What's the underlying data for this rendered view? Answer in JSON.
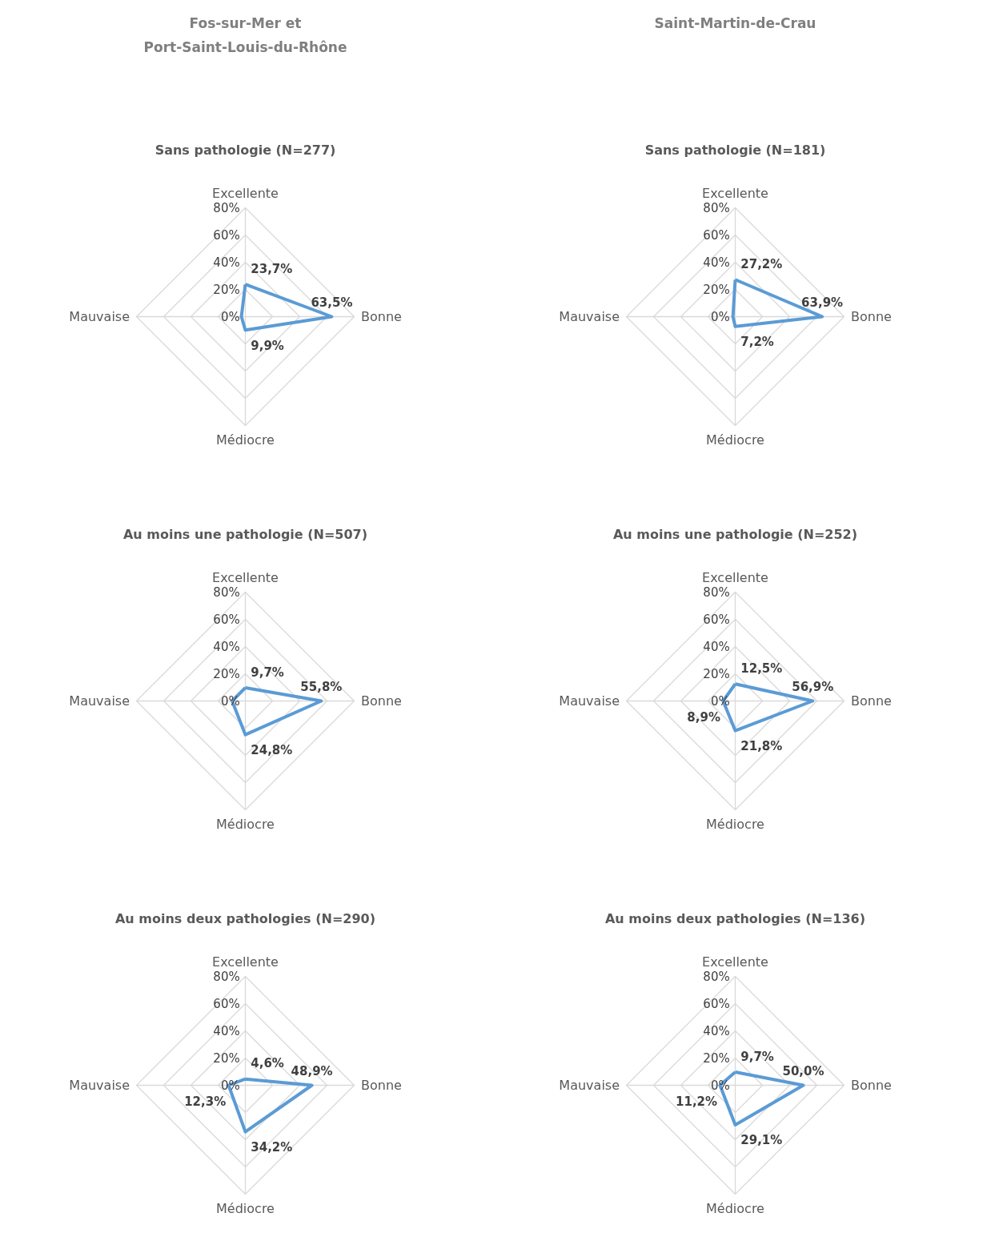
{
  "chart_data": [
    {
      "type": "radar",
      "title": "Sans pathologie (N=277)",
      "annotations": [
        "Fos-sur-Mer et\nPort-Saint-Louis-du-Rhône"
      ],
      "categories": [
        "Excellente",
        "Bonne",
        "Médiocre",
        "Mauvaise"
      ],
      "ylim": [
        0,
        80
      ],
      "yticks": [
        {
          "value": 0,
          "label": "0%"
        },
        {
          "value": 20,
          "label": "20%"
        },
        {
          "value": 40,
          "label": "40%"
        },
        {
          "value": 60,
          "label": "60%"
        },
        {
          "value": 80,
          "label": "80%"
        }
      ],
      "series": [
        {
          "color": "#5b9bd5",
          "values": [
            23.7,
            63.5,
            9.9,
            2.9
          ],
          "value_labels": [
            "23,7%",
            "63,5%",
            "9,9%",
            null
          ]
        }
      ]
    },
    {
      "type": "radar",
      "title": "Sans pathologie (N=181)",
      "annotations": [
        "Saint-Martin-de-Crau"
      ],
      "categories": [
        "Excellente",
        "Bonne",
        "Médiocre",
        "Mauvaise"
      ],
      "ylim": [
        0,
        80
      ],
      "yticks": [
        {
          "value": 0,
          "label": "0%"
        },
        {
          "value": 20,
          "label": "20%"
        },
        {
          "value": 40,
          "label": "40%"
        },
        {
          "value": 60,
          "label": "60%"
        },
        {
          "value": 80,
          "label": "80%"
        }
      ],
      "series": [
        {
          "color": "#5b9bd5",
          "values": [
            27.2,
            63.9,
            7.2,
            1.7
          ],
          "value_labels": [
            "27,2%",
            "63,9%",
            "7,2%",
            null
          ]
        }
      ]
    },
    {
      "type": "radar",
      "title": "Au moins une pathologie (N=507)",
      "categories": [
        "Excellente",
        "Bonne",
        "Médiocre",
        "Mauvaise"
      ],
      "ylim": [
        0,
        80
      ],
      "yticks": [
        {
          "value": 0,
          "label": "0%"
        },
        {
          "value": 20,
          "label": "20%"
        },
        {
          "value": 40,
          "label": "40%"
        },
        {
          "value": 60,
          "label": "60%"
        },
        {
          "value": 80,
          "label": "80%"
        }
      ],
      "series": [
        {
          "color": "#5b9bd5",
          "values": [
            9.7,
            55.8,
            24.8,
            9.7
          ],
          "value_labels": [
            "9,7%",
            "55,8%",
            "24,8%",
            null
          ]
        }
      ]
    },
    {
      "type": "radar",
      "title": "Au moins une pathologie (N=252)",
      "categories": [
        "Excellente",
        "Bonne",
        "Médiocre",
        "Mauvaise"
      ],
      "ylim": [
        0,
        80
      ],
      "yticks": [
        {
          "value": 0,
          "label": "0%"
        },
        {
          "value": 20,
          "label": "20%"
        },
        {
          "value": 40,
          "label": "40%"
        },
        {
          "value": 60,
          "label": "60%"
        },
        {
          "value": 80,
          "label": "80%"
        }
      ],
      "series": [
        {
          "color": "#5b9bd5",
          "values": [
            12.5,
            56.9,
            21.8,
            8.9
          ],
          "value_labels": [
            "12,5%",
            "56,9%",
            "21,8%",
            "8,9%"
          ]
        }
      ]
    },
    {
      "type": "radar",
      "title": "Au moins deux pathologies (N=290)",
      "categories": [
        "Excellente",
        "Bonne",
        "Médiocre",
        "Mauvaise"
      ],
      "ylim": [
        0,
        80
      ],
      "yticks": [
        {
          "value": 0,
          "label": "0%"
        },
        {
          "value": 20,
          "label": "20%"
        },
        {
          "value": 40,
          "label": "40%"
        },
        {
          "value": 60,
          "label": "60%"
        },
        {
          "value": 80,
          "label": "80%"
        }
      ],
      "series": [
        {
          "color": "#5b9bd5",
          "values": [
            4.6,
            48.9,
            34.2,
            12.3
          ],
          "value_labels": [
            "4,6%",
            "48,9%",
            "34,2%",
            "12,3%"
          ]
        }
      ]
    },
    {
      "type": "radar",
      "title": "Au moins deux pathologies (N=136)",
      "categories": [
        "Excellente",
        "Bonne",
        "Médiocre",
        "Mauvaise"
      ],
      "ylim": [
        0,
        80
      ],
      "yticks": [
        {
          "value": 0,
          "label": "0%"
        },
        {
          "value": 20,
          "label": "20%"
        },
        {
          "value": 40,
          "label": "40%"
        },
        {
          "value": 60,
          "label": "60%"
        },
        {
          "value": 80,
          "label": "80%"
        }
      ],
      "series": [
        {
          "color": "#5b9bd5",
          "values": [
            9.7,
            50.0,
            29.1,
            11.2
          ],
          "value_labels": [
            "9,7%",
            "50,0%",
            "29,1%",
            "11,2%"
          ]
        }
      ]
    }
  ]
}
